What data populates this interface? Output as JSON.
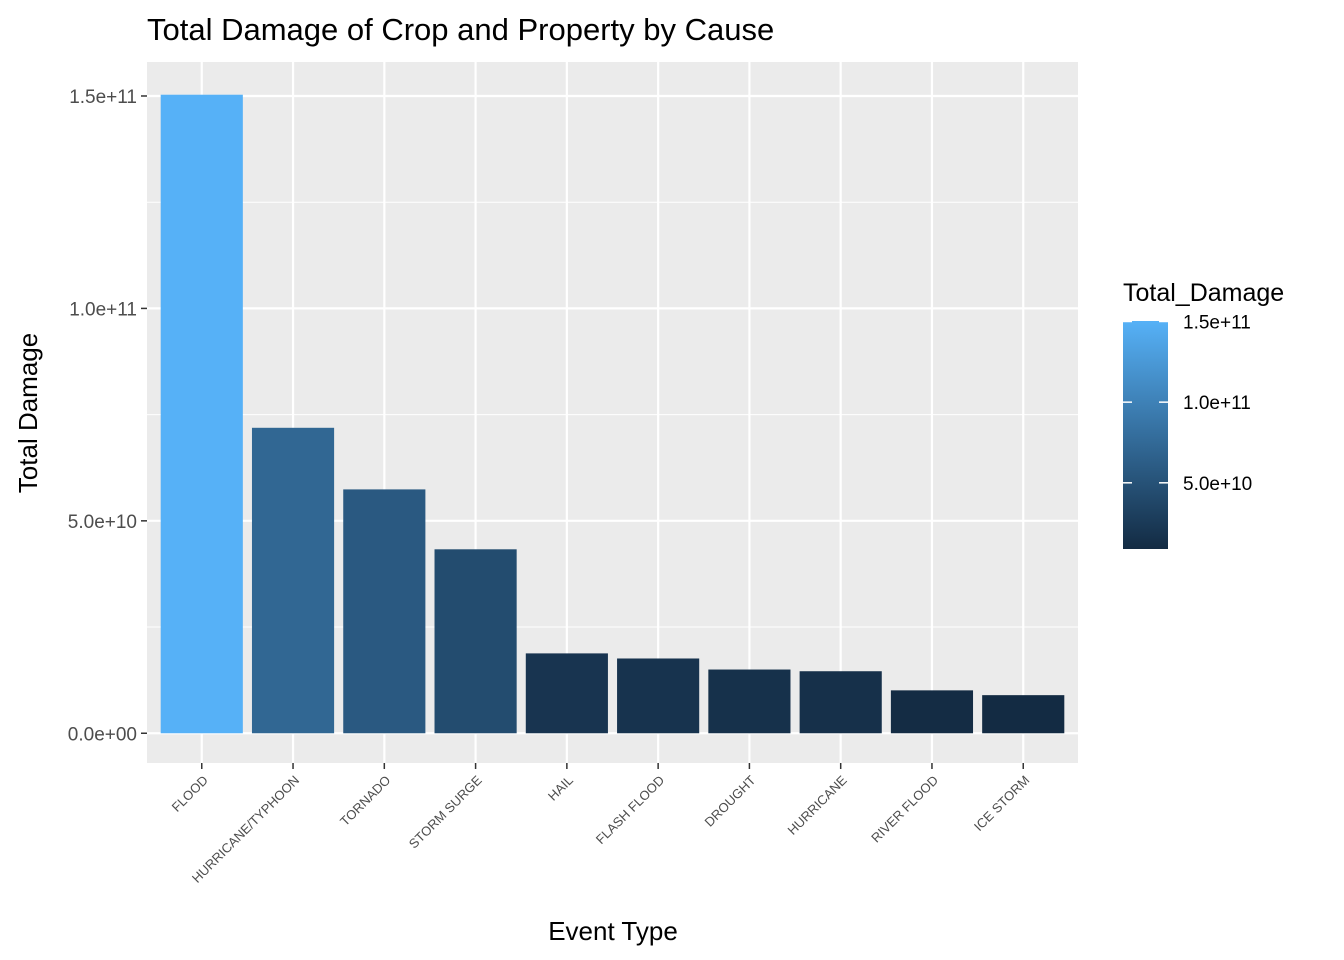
{
  "chart_data": {
    "type": "bar",
    "title": "Total Damage of Crop and Property by Cause",
    "xlabel": "Event Type",
    "ylabel": "Total Damage",
    "categories": [
      "FLOOD",
      "HURRICANE/TYPHOON",
      "TORNADO",
      "STORM SURGE",
      "HAIL",
      "FLASH FLOOD",
      "DROUGHT",
      "HURRICANE",
      "RIVER FLOOD",
      "ICE STORM"
    ],
    "values": [
      150300000000,
      71900000000,
      57400000000,
      43300000000,
      18800000000,
      17600000000,
      15000000000,
      14600000000,
      10100000000,
      8970000000
    ],
    "ylim": [
      -7000000000,
      158000000000
    ],
    "yticks": [
      0,
      50000000000,
      100000000000,
      150000000000
    ],
    "ytick_labels": [
      "0.0e+00",
      "5.0e+10",
      "1.0e+11",
      "1.5e+11"
    ],
    "grid": true,
    "panel_background": "#ebebeb",
    "fill_scale": {
      "title": "Total_Damage",
      "low_color": "#132b43",
      "high_color": "#56b1f7",
      "limits": [
        8970000000,
        150300000000
      ],
      "breaks": [
        50000000000,
        100000000000,
        150000000000
      ],
      "break_labels": [
        "5.0e+10",
        "1.0e+11",
        "1.5e+11"
      ],
      "legend_position": "right"
    }
  }
}
